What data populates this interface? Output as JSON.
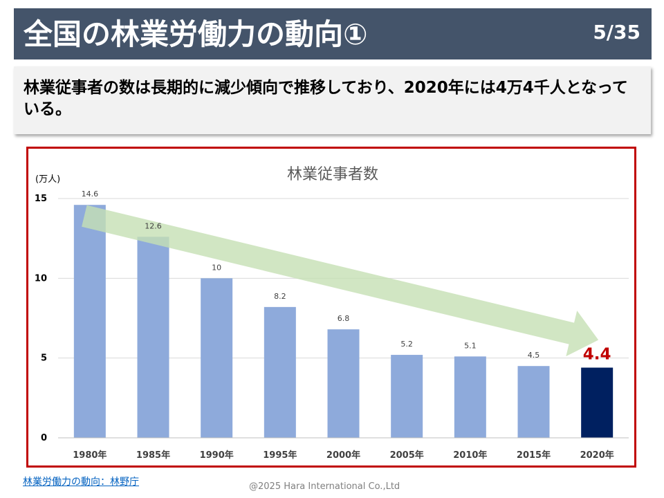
{
  "header": {
    "title": "全国の林業労働力の動向①",
    "page": "5/35"
  },
  "summary": {
    "text": "林業従事者の数は長期的に減少傾向で推移しており、2020年には4万4千人となっている。"
  },
  "chart_data": {
    "type": "bar",
    "title": "林業従事者数",
    "ylabel": "(万人)",
    "categories": [
      "1980年",
      "1985年",
      "1990年",
      "1995年",
      "2000年",
      "2005年",
      "2010年",
      "2015年",
      "2020年"
    ],
    "values": [
      14.6,
      12.6,
      10,
      8.2,
      6.8,
      5.2,
      5.1,
      4.5,
      4.4
    ],
    "value_labels": [
      "14.6",
      "12.6",
      "10",
      "8.2",
      "6.8",
      "5.2",
      "5.1",
      "4.5",
      "4.4"
    ],
    "yticks": [
      "0",
      "5",
      "10",
      "15"
    ],
    "ylim": [
      0,
      15
    ],
    "grid": true,
    "colors": {
      "bar": "#8eaadb",
      "highlight_bar": "#002060",
      "highlight_label": "#c00000",
      "trend_arrow": "#c5e0b4"
    },
    "highlight_index": 8
  },
  "footer": {
    "source": "林業労働力の動向：林野庁",
    "copyright": "@2025 Hara International Co.,Ltd"
  }
}
